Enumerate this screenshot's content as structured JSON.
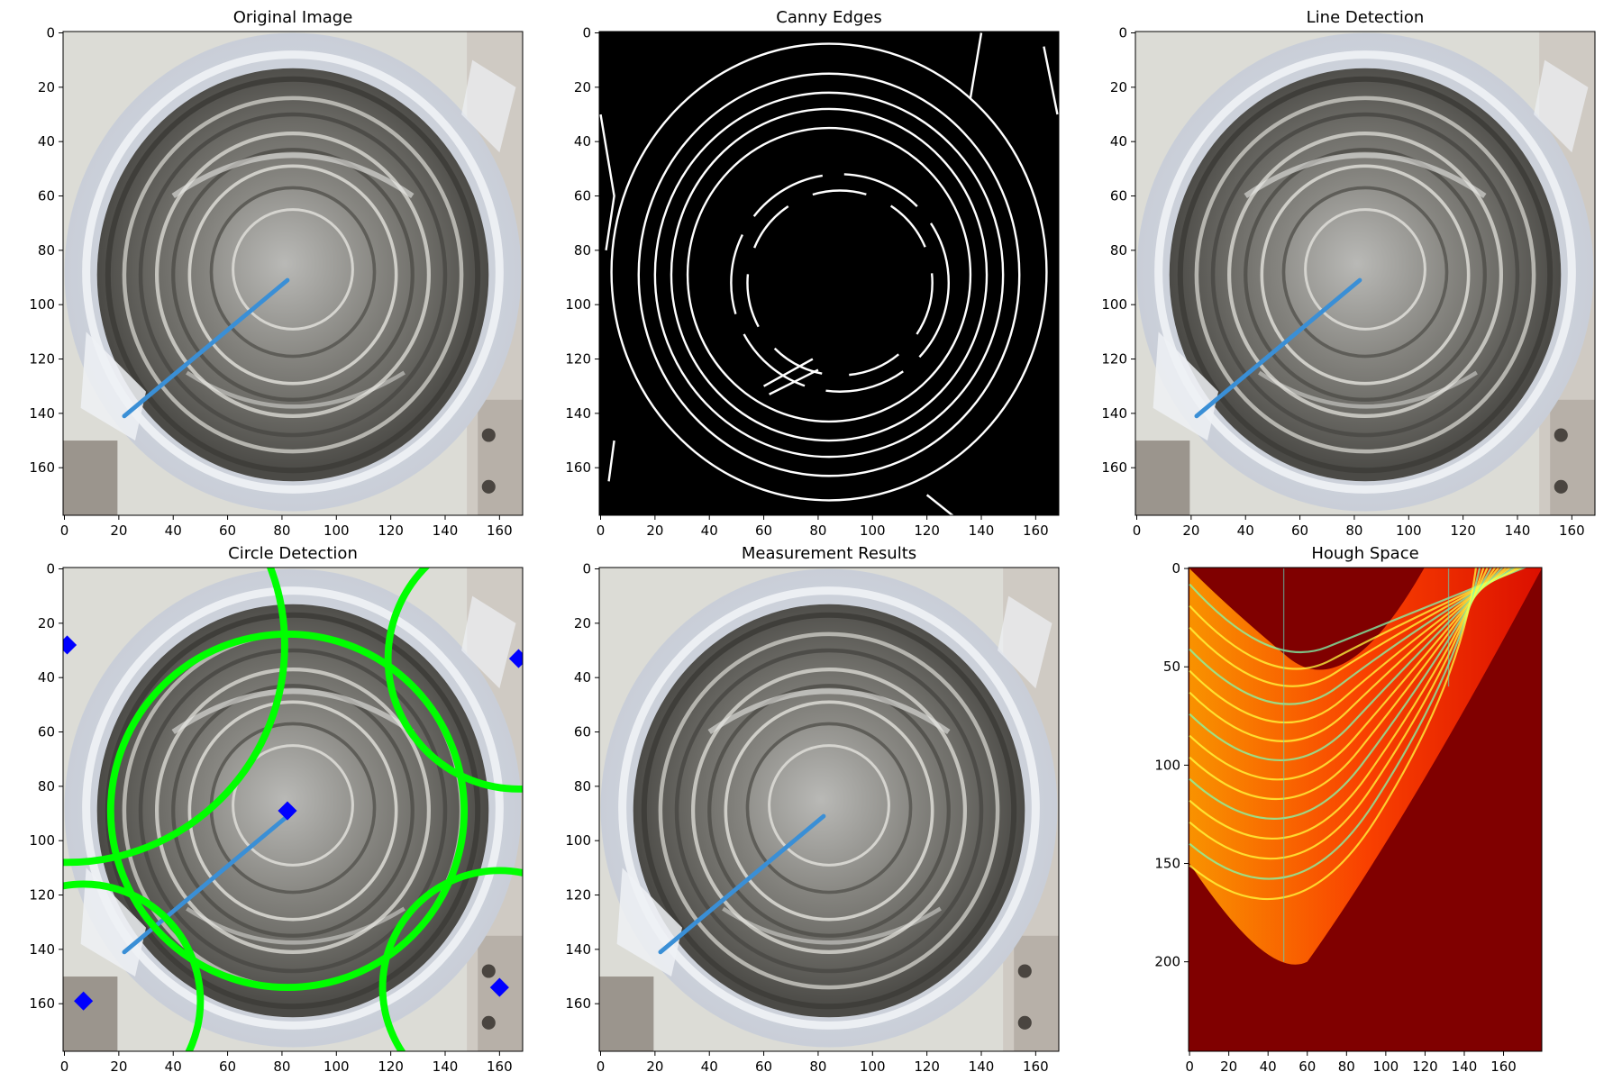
{
  "figure": {
    "panels": [
      {
        "id": "original",
        "title": "Original Image",
        "kind": "photo",
        "x_ticks": [
          "0",
          "20",
          "40",
          "60",
          "80",
          "100",
          "120",
          "140",
          "160"
        ],
        "y_ticks": [
          "0",
          "20",
          "40",
          "60",
          "80",
          "100",
          "120",
          "140",
          "160"
        ]
      },
      {
        "id": "canny",
        "title": "Canny Edges",
        "kind": "edges",
        "x_ticks": [
          "0",
          "20",
          "40",
          "60",
          "80",
          "100",
          "120",
          "140",
          "160"
        ],
        "y_ticks": [
          "0",
          "20",
          "40",
          "60",
          "80",
          "100",
          "120",
          "140",
          "160"
        ]
      },
      {
        "id": "lines",
        "title": "Line Detection",
        "kind": "photo",
        "x_ticks": [
          "0",
          "20",
          "40",
          "60",
          "80",
          "100",
          "120",
          "140",
          "160"
        ],
        "y_ticks": [
          "0",
          "20",
          "40",
          "60",
          "80",
          "100",
          "120",
          "140",
          "160"
        ]
      },
      {
        "id": "circles",
        "title": "Circle Detection",
        "kind": "circles",
        "x_ticks": [
          "0",
          "20",
          "40",
          "60",
          "80",
          "100",
          "120",
          "140",
          "160"
        ],
        "y_ticks": [
          "0",
          "20",
          "40",
          "60",
          "80",
          "100",
          "120",
          "140",
          "160"
        ]
      },
      {
        "id": "measure",
        "title": "Measurement Results",
        "kind": "photo",
        "x_ticks": [
          "0",
          "20",
          "40",
          "60",
          "80",
          "100",
          "120",
          "140",
          "160"
        ],
        "y_ticks": [
          "0",
          "20",
          "40",
          "60",
          "80",
          "100",
          "120",
          "140",
          "160"
        ]
      },
      {
        "id": "hough",
        "title": "Hough Space",
        "kind": "hough",
        "x_ticks": [
          "0",
          "20",
          "40",
          "60",
          "80",
          "100",
          "120",
          "140",
          "160"
        ],
        "y_ticks": [
          "0",
          "50",
          "100",
          "150",
          "200"
        ]
      }
    ],
    "image_extent": {
      "width": 169,
      "height": 178
    },
    "hough_extent": {
      "width": 180,
      "height": 246
    },
    "detected_line": {
      "x1": 22,
      "y1": 141,
      "x2": 82,
      "y2": 91
    },
    "detected_circles": [
      {
        "cx": 82,
        "cy": 89,
        "r": 65
      },
      {
        "cx": 7,
        "cy": 159,
        "r": 43
      },
      {
        "cx": 160,
        "cy": 154,
        "r": 43
      },
      {
        "cx": 1,
        "cy": 28,
        "r": 80
      },
      {
        "cx": 167,
        "cy": 33,
        "r": 48
      }
    ],
    "colors": {
      "line": "#3a8fd6",
      "circle": "#00ff00",
      "center_marker": "#0000ff",
      "hough_background": "#800000",
      "edges_background": "#000000",
      "edges": "#ffffff"
    }
  }
}
